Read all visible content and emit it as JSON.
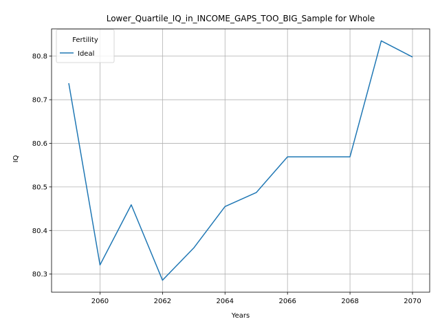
{
  "chart_data": {
    "type": "line",
    "title": "Lower_Quartile_IQ_in_INCOME_GAPS_TOO_BIG_Sample for Whole",
    "xlabel": "Years",
    "ylabel": "IQ",
    "xlim": [
      2058.45,
      2070.55
    ],
    "ylim": [
      80.2585,
      80.8625
    ],
    "xticks": [
      2060,
      2062,
      2064,
      2066,
      2068,
      2070
    ],
    "xtick_labels": [
      "2060",
      "2062",
      "2064",
      "2066",
      "2068",
      "2070"
    ],
    "yticks": [
      80.3,
      80.4,
      80.5,
      80.6,
      80.7,
      80.8
    ],
    "ytick_labels": [
      "80.3",
      "80.4",
      "80.5",
      "80.6",
      "80.7",
      "80.8"
    ],
    "grid": true,
    "legend": {
      "title": "Fertility",
      "placement": "top-left"
    },
    "series": [
      {
        "name": "Ideal",
        "color": "#1f77b4",
        "x": [
          2059,
          2060,
          2061,
          2062,
          2063,
          2064,
          2065,
          2066,
          2067,
          2068,
          2069,
          2070
        ],
        "y": [
          80.738,
          80.321,
          80.459,
          80.286,
          80.36,
          80.455,
          80.487,
          80.569,
          80.569,
          80.569,
          80.835,
          80.798
        ]
      }
    ]
  }
}
